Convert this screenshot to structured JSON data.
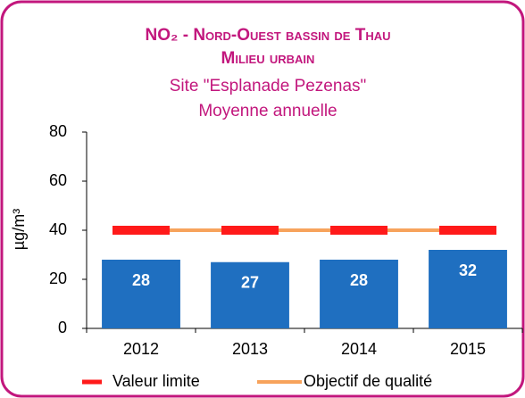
{
  "chart_data": {
    "type": "bar",
    "title": [
      "NO₂ - Nord-Ouest bassin de Thau",
      "Milieu urbain"
    ],
    "subtitle": [
      "Site \"Esplanade Pezenas\"",
      "Moyenne annuelle"
    ],
    "title_color": "#c2177d",
    "y_label": "µg/m³",
    "categories": [
      "2012",
      "2013",
      "2014",
      "2015"
    ],
    "values": [
      28,
      27,
      28,
      32
    ],
    "color": "#1f6fc0",
    "series": [
      {
        "name": "Valeur limite",
        "color": "#ff1a1a",
        "mark": "dash",
        "values": [
          40,
          40,
          40,
          40
        ]
      },
      {
        "name": "Objectif de qualité",
        "color": "#f7a35c",
        "mark": "line",
        "values": [
          40,
          40,
          40,
          40
        ]
      }
    ],
    "ylim": [
      0,
      80
    ],
    "yticks": [
      0,
      20,
      40,
      60,
      80
    ],
    "grid": false,
    "legend": "bottom"
  }
}
